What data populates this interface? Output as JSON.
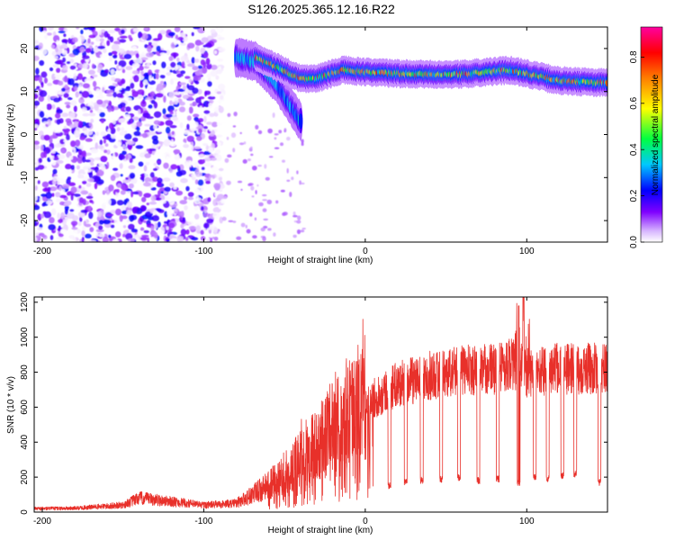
{
  "figure": {
    "title": "S126.2025.365.12.16.R22"
  },
  "chart_data": [
    {
      "type": "heatmap",
      "xlabel": "Height of straight line (km)",
      "ylabel": "Frequency (Hz)",
      "xlim": [
        -205,
        150
      ],
      "ylim": [
        -25,
        25
      ],
      "xticks": [
        -200,
        -100,
        0,
        100
      ],
      "yticks": [
        -20,
        -10,
        0,
        10,
        20
      ],
      "colorbar": {
        "label": "Normalized spectral amplitude",
        "range": [
          0.0,
          0.93
        ],
        "ticks": [
          0.0,
          0.2,
          0.4,
          0.6,
          0.8
        ],
        "tick_labels": [
          "0.0",
          "0.2",
          "0.4",
          "0.6",
          "0.8"
        ],
        "colors": [
          "#ffffff",
          "#7f00ff",
          "#0000ff",
          "#00c8ff",
          "#00ff00",
          "#ffff00",
          "#ff8000",
          "#ff0000",
          "#ff00a0"
        ]
      },
      "features": {
        "noise_region_x": [
          -205,
          -88
        ],
        "noise_frequency_range": [
          -25,
          25
        ],
        "noise_amplitude": [
          0.0,
          0.25
        ],
        "descending_branch": {
          "x": [
            -80,
            -68,
            -60,
            -55,
            -50,
            -45,
            -40
          ],
          "freq": [
            18,
            17,
            14,
            12,
            9,
            6,
            3
          ],
          "amplitude": 0.3
        },
        "main_band": {
          "x": [
            -68,
            -40,
            -30,
            -14,
            0,
            30,
            60,
            90,
            120,
            150
          ],
          "freq": [
            18,
            13,
            13,
            15,
            14.5,
            14,
            14,
            15,
            12.5,
            12
          ],
          "amplitude": 0.6
        }
      }
    },
    {
      "type": "line",
      "xlabel": "Height of straight line (km)",
      "ylabel": "SNR (10 * v/v)",
      "xlim": [
        -205,
        150
      ],
      "ylim": [
        0,
        1230
      ],
      "xticks": [
        -200,
        -100,
        0,
        100
      ],
      "yticks": [
        0,
        200,
        400,
        600,
        800,
        1000,
        1200
      ],
      "color": "#e8302a",
      "envelope": {
        "x": [
          -205,
          -180,
          -150,
          -140,
          -100,
          -80,
          -60,
          -40,
          -20,
          -10,
          0,
          10,
          20,
          40,
          60,
          80,
          90,
          100,
          120,
          150
        ],
        "snr": [
          20,
          22,
          40,
          80,
          40,
          50,
          150,
          300,
          480,
          560,
          620,
          680,
          730,
          780,
          810,
          820,
          850,
          800,
          820,
          820
        ]
      },
      "dropouts": {
        "x": [
          15,
          25,
          35,
          47,
          58,
          70,
          82,
          95,
          105,
          113,
          122,
          130,
          145
        ],
        "snr": [
          130,
          150,
          160,
          170,
          180,
          160,
          170,
          150,
          180,
          170,
          190,
          200,
          150
        ]
      },
      "peak": {
        "x": 98,
        "snr": 1230
      }
    }
  ]
}
